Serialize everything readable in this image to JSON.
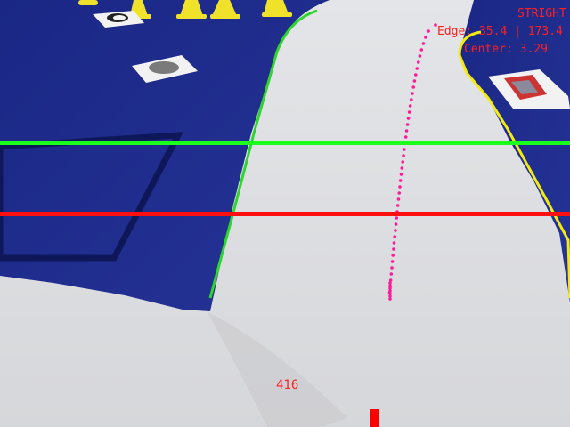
{
  "hud": {
    "status": "STRIGHT",
    "edge_readout": "Edge: 35.4 | 173.4",
    "center_readout": "Center: 3.29",
    "offset_value": "416"
  },
  "colors": {
    "hud_text": "#ff2020",
    "upper_scanline": "#1cff1c",
    "lower_scanline": "#ff1010",
    "left_edge": "#2cd62c",
    "right_edge": "#f2ea10",
    "trajectory_dots": "#ff1a9a",
    "center_marker": "#ff0000",
    "mat_blue": "#1e2a8c",
    "floor_white": "#dedfe2"
  },
  "icons": {
    "cones": "traffic-cone-icon",
    "markers": "fiducial-marker-icon"
  }
}
